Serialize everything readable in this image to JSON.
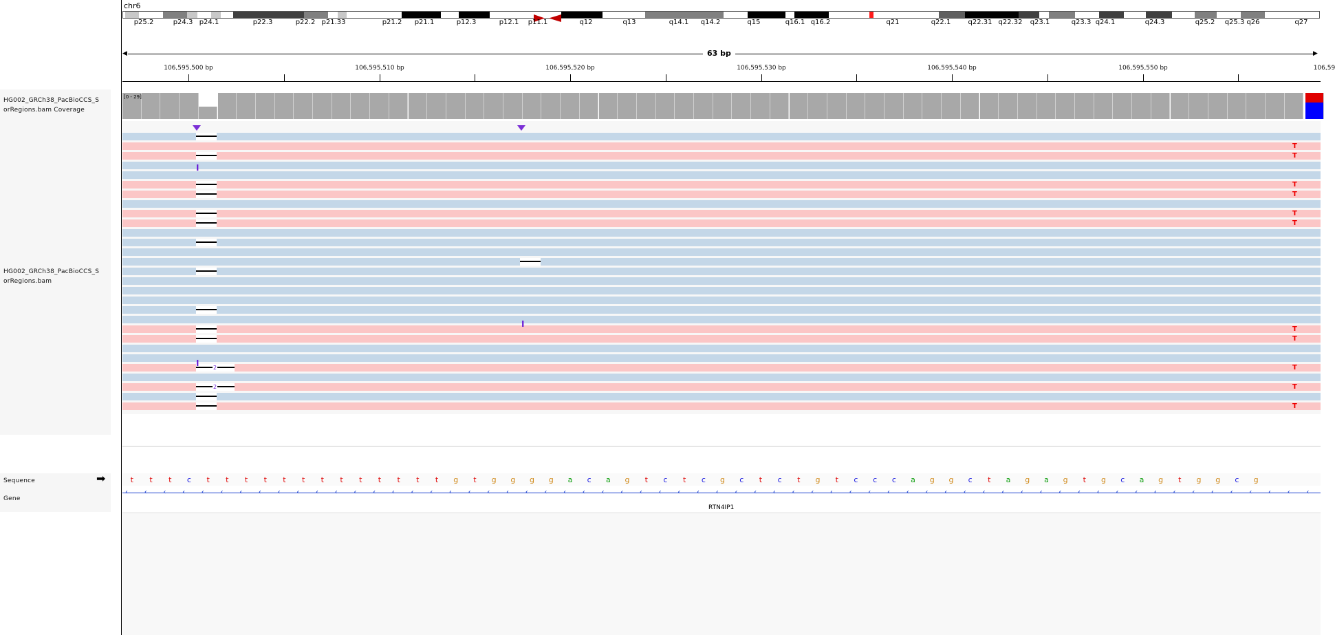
{
  "chromosome": "chr6",
  "ideogram": {
    "bands": [
      "p25.2",
      "p24.3",
      "p24.1",
      "p22.3",
      "p22.2",
      "p21.33",
      "p21.2",
      "p21.1",
      "p12.3",
      "p12.1",
      "p11.1",
      "q12",
      "q13",
      "q14.1",
      "q14.2",
      "q15",
      "q16.1",
      "q16.2",
      "q21",
      "q22.1",
      "q22.31",
      "q22.32",
      "q23.1",
      "q23.3",
      "q24.1",
      "q24.3",
      "q25.2",
      "q25.3",
      "q26",
      "q27"
    ]
  },
  "ruler": {
    "span_label": "63 bp",
    "positions": [
      "106,595,500 bp",
      "106,595,510 bp",
      "106,595,520 bp",
      "106,595,530 bp",
      "106,595,540 bp",
      "106,595,550 bp",
      "106,59"
    ]
  },
  "tracks": {
    "coverage_label": "HG002_GRCh38_PacBioCCS_S\norRegions.bam Coverage",
    "coverage_range": "[0 - 29]",
    "alignment_label": "HG002_GRCh38_PacBioCCS_S\norRegions.bam",
    "sequence_label": "Sequence",
    "gene_label": "Gene"
  },
  "sequence": "tttctttttttttttttgtggggacagtctcgctctgtcccaggctagagtgcagtggcg",
  "gene": {
    "name": "RTN4IP1",
    "strand": "-"
  },
  "reads": {
    "snp_base": "T",
    "deletion_count": "2"
  },
  "colors": {
    "forward_read": "#c4d7e8",
    "reverse_read": "#fbc6c6",
    "mismatch": "#e00000",
    "insertion": "#7b2fd6",
    "base_a": "#14a014",
    "base_c": "#1a1ae0",
    "base_g": "#d08a1a",
    "base_t": "#e01010"
  }
}
